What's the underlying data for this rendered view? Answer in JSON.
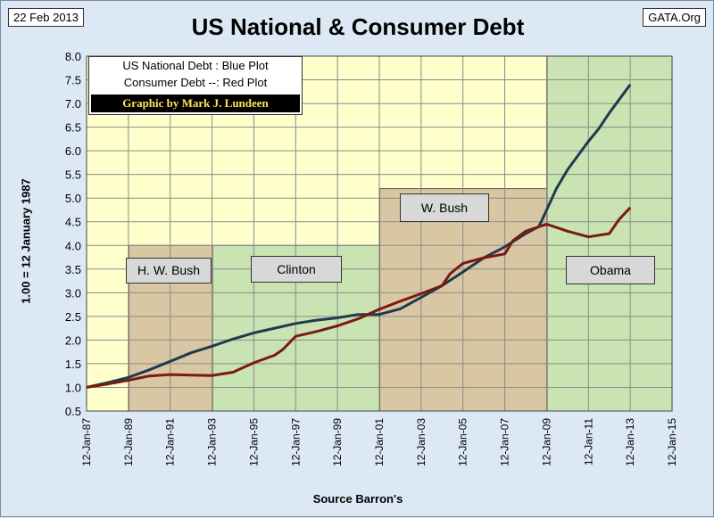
{
  "date_tag": "22 Feb 2013",
  "source_tag": "GATA.Org",
  "legend": {
    "line1": "US National Debt : Blue Plot",
    "line2": "Consumer Debt --: Red  Plot",
    "credit": "Graphic by Mark J. Lundeen"
  },
  "colors": {
    "national_debt": "#1f3a4d",
    "consumer_debt": "#7a1a10",
    "period_yellow": "#ffffcc",
    "period_tan": "#d9c7a3",
    "period_green": "#c9e3b3",
    "background": "#dce9f5"
  },
  "chart_data": {
    "type": "line",
    "title": "US National & Consumer Debt",
    "xlabel": "Source Barron's",
    "ylabel": "1.00  =  12 January  1987",
    "xlim": [
      "1987-01-12",
      "2015-01-12"
    ],
    "ylim": [
      0.5,
      8.0
    ],
    "x_ticks": [
      "12-Jan-87",
      "12-Jan-89",
      "12-Jan-91",
      "12-Jan-93",
      "12-Jan-95",
      "12-Jan-97",
      "12-Jan-99",
      "12-Jan-01",
      "12-Jan-03",
      "12-Jan-05",
      "12-Jan-07",
      "12-Jan-09",
      "12-Jan-11",
      "12-Jan-13",
      "12-Jan-15"
    ],
    "y_ticks": [
      "0.5",
      "1.0",
      "1.5",
      "2.0",
      "2.5",
      "3.0",
      "3.5",
      "4.0",
      "4.5",
      "5.0",
      "5.5",
      "6.0",
      "6.5",
      "7.0",
      "7.5",
      "8.0"
    ],
    "grid": true,
    "legend_position": "top-left",
    "periods": [
      {
        "label": "H. W. Bush",
        "start": "1989-01-20",
        "end": "1993-01-20",
        "top": 4.0,
        "fill": "tan"
      },
      {
        "label": "Clinton",
        "start": "1993-01-20",
        "end": "2001-01-20",
        "top": 4.0,
        "fill": "green"
      },
      {
        "label": "W. Bush",
        "start": "2001-01-20",
        "end": "2009-01-20",
        "top": 5.2,
        "fill": "tan"
      },
      {
        "label": "Obama",
        "start": "2009-01-20",
        "end": "2015-01-12",
        "top": 8.0,
        "fill": "green"
      }
    ],
    "series": [
      {
        "name": "US National Debt",
        "x": [
          "1987-01-12",
          "1988-01-12",
          "1989-01-12",
          "1990-01-12",
          "1991-01-12",
          "1992-01-12",
          "1993-01-12",
          "1994-01-12",
          "1995-01-12",
          "1996-01-12",
          "1997-01-12",
          "1998-01-12",
          "1999-01-12",
          "2000-01-12",
          "2001-01-12",
          "2002-01-12",
          "2003-01-12",
          "2004-01-12",
          "2005-01-12",
          "2006-01-12",
          "2007-01-12",
          "2008-01-12",
          "2008-09-01",
          "2009-01-12",
          "2009-07-01",
          "2010-01-12",
          "2011-01-12",
          "2011-07-01",
          "2012-01-12",
          "2013-01-12"
        ],
        "values": [
          1.0,
          1.1,
          1.21,
          1.37,
          1.55,
          1.73,
          1.87,
          2.02,
          2.15,
          2.25,
          2.35,
          2.42,
          2.47,
          2.54,
          2.54,
          2.66,
          2.9,
          3.15,
          3.44,
          3.74,
          3.97,
          4.25,
          4.4,
          4.75,
          5.2,
          5.6,
          6.2,
          6.45,
          6.8,
          7.4
        ]
      },
      {
        "name": "Consumer Debt",
        "x": [
          "1987-01-12",
          "1988-01-12",
          "1989-01-12",
          "1990-01-12",
          "1991-01-12",
          "1992-01-12",
          "1993-01-12",
          "1994-01-12",
          "1995-01-12",
          "1996-01-12",
          "1996-06-01",
          "1997-01-12",
          "1998-01-12",
          "1999-01-12",
          "2000-01-12",
          "2001-01-12",
          "2002-01-12",
          "2003-01-12",
          "2004-01-12",
          "2004-06-01",
          "2005-01-12",
          "2006-01-12",
          "2007-01-12",
          "2007-06-01",
          "2008-01-12",
          "2009-01-12",
          "2010-01-12",
          "2011-01-12",
          "2012-01-12",
          "2012-07-01",
          "2013-01-12"
        ],
        "values": [
          1.0,
          1.07,
          1.15,
          1.24,
          1.27,
          1.26,
          1.25,
          1.32,
          1.52,
          1.68,
          1.8,
          2.08,
          2.18,
          2.3,
          2.45,
          2.65,
          2.82,
          2.98,
          3.15,
          3.4,
          3.62,
          3.74,
          3.82,
          4.1,
          4.3,
          4.45,
          4.3,
          4.18,
          4.25,
          4.55,
          4.8
        ]
      }
    ]
  }
}
